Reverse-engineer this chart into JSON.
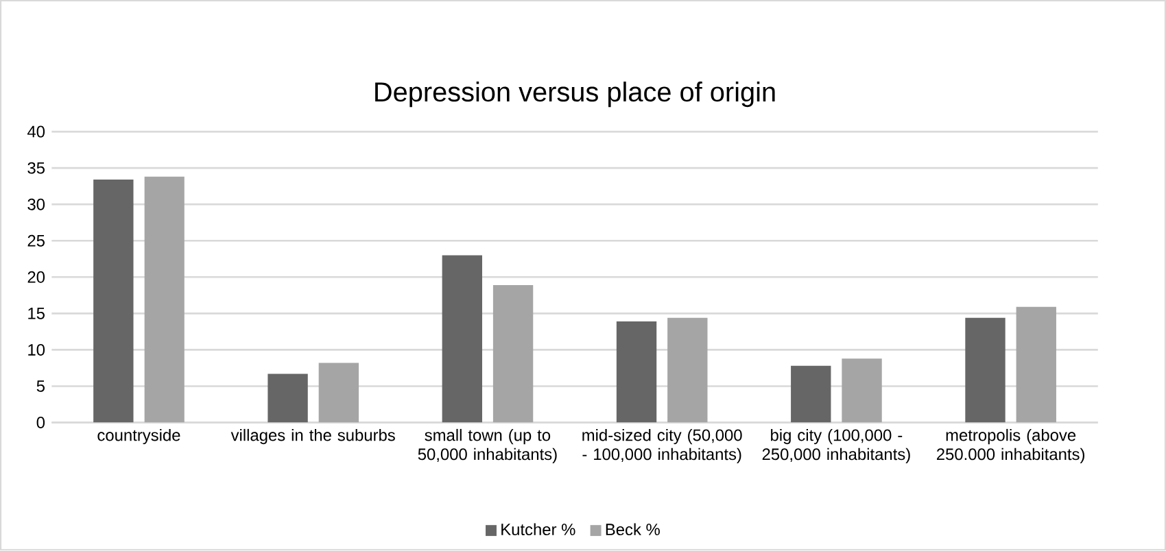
{
  "chart_data": {
    "type": "bar",
    "title": "Depression versus place of origin",
    "categories": [
      "countryside",
      "villages in the suburbs",
      "small town (up to 50,000 inhabitants)",
      "mid-sized city (50,000 - 100,000 inhabitants)",
      "big city (100,000 - 250,000 inhabitants)",
      "metropolis (above 250.000 inhabitants)"
    ],
    "series": [
      {
        "name": "Kutcher %",
        "color": "#666666",
        "values": [
          33.4,
          6.7,
          23.0,
          13.9,
          7.8,
          14.4
        ]
      },
      {
        "name": "Beck %",
        "color": "#a5a5a5",
        "values": [
          33.8,
          8.2,
          18.9,
          14.4,
          8.8,
          15.9
        ]
      }
    ],
    "ylim": [
      0,
      40
    ],
    "yticks": [
      0,
      5,
      10,
      15,
      20,
      25,
      30,
      35,
      40
    ],
    "grid": "y",
    "legend": "bottom"
  }
}
